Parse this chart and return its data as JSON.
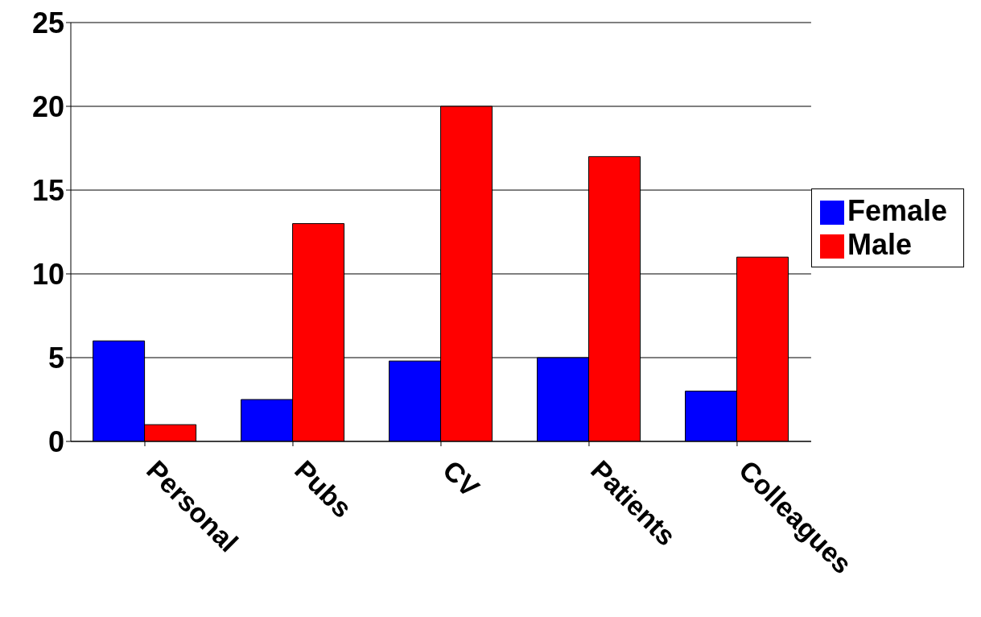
{
  "chart_data": {
    "type": "bar",
    "categories": [
      "Personal",
      "Pubs",
      "CV",
      "Patients",
      "Colleagues"
    ],
    "series": [
      {
        "name": "Female",
        "color": "#0000ff",
        "values": [
          6,
          2.5,
          4.8,
          5,
          3
        ]
      },
      {
        "name": "Male",
        "color": "#ff0000",
        "values": [
          1,
          13,
          20,
          17,
          11
        ]
      }
    ],
    "ylim": [
      0,
      25
    ],
    "yticks": [
      0,
      5,
      10,
      15,
      20,
      25
    ],
    "grid": "y",
    "legend": "right"
  }
}
